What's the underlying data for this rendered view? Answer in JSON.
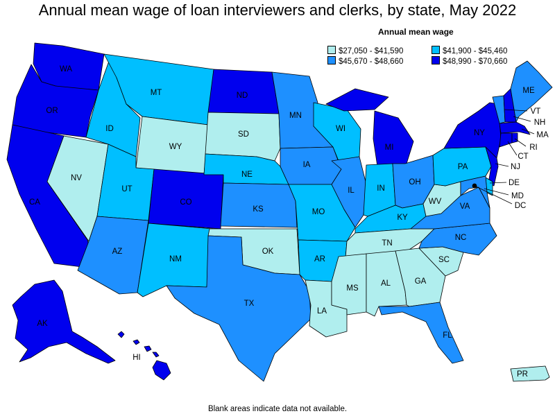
{
  "title": "Annual mean wage of loan interviewers and clerks, by state, May 2022",
  "legend": {
    "title": "Annual mean wage",
    "bins": [
      {
        "range": "$27,050 - $41,590",
        "color": "#b0eeee"
      },
      {
        "range": "$41,900 - $45,460",
        "color": "#00bfff"
      },
      {
        "range": "$45,670 - $48,660",
        "color": "#1e90ff"
      },
      {
        "range": "$48,990 - $70,660",
        "color": "#0000ee"
      }
    ]
  },
  "footnote": "Blank areas indicate data not available.",
  "states": {
    "WA": 3,
    "OR": 3,
    "CA": 3,
    "NV": 0,
    "ID": 1,
    "MT": 1,
    "WY": 0,
    "UT": 1,
    "AZ": 2,
    "CO": 3,
    "NM": 1,
    "ND": 3,
    "SD": 0,
    "NE": 1,
    "KS": 2,
    "OK": 0,
    "TX": 2,
    "MN": 2,
    "IA": 2,
    "MO": 1,
    "AR": 1,
    "LA": 0,
    "WI": 1,
    "IL": 2,
    "MI": 3,
    "IN": 1,
    "OH": 2,
    "KY": 1,
    "TN": 0,
    "MS": 0,
    "AL": 0,
    "GA": 0,
    "FL": 2,
    "SC": 0,
    "NC": 2,
    "VA": 2,
    "WV": 0,
    "PA": 1,
    "NY": 3,
    "VT": 2,
    "NH": 3,
    "ME": 2,
    "MA": 3,
    "RI": 3,
    "CT": 3,
    "NJ": 3,
    "DE": 1,
    "MD": 2,
    "DC": 3,
    "AK": 3,
    "HI": 3,
    "PR": 0
  }
}
